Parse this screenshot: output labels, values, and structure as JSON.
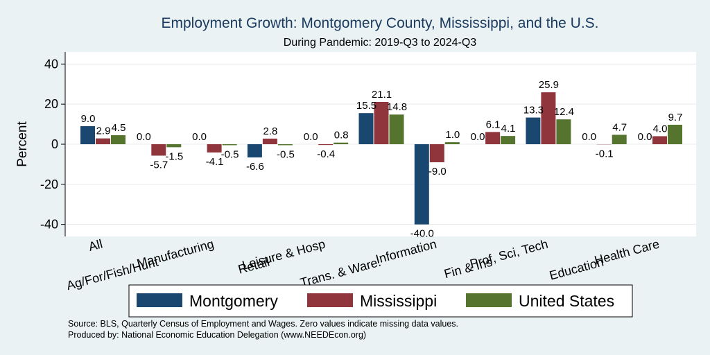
{
  "chart_data": {
    "type": "bar",
    "title": "Employment Growth: Montgomery County, Mississippi, and the U.S.",
    "subtitle": "During Pandemic: 2019-Q3 to 2024-Q3",
    "ylabel": "Percent",
    "xlabel": "",
    "ylim": [
      -46,
      46
    ],
    "yticks": [
      -40,
      -20,
      0,
      20,
      40
    ],
    "grid": true,
    "legend_position": "bottom",
    "categories": [
      "All",
      "Ag/For/Fish/Hunt",
      "Manufacturing",
      "Retail",
      "Leisure & Hosp",
      "Trans. & Ware.",
      "Information",
      "Fin & Ins",
      "Prof, Sci, Tech",
      "Education",
      "Health Care"
    ],
    "series": [
      {
        "name": "Montgomery",
        "color": "#1a476f",
        "values": [
          9.0,
          0.0,
          0.0,
          -6.6,
          0.0,
          15.5,
          -40.0,
          0.0,
          13.3,
          0.0,
          0.0
        ]
      },
      {
        "name": "Mississippi",
        "color": "#90353b",
        "values": [
          2.9,
          -5.7,
          -4.1,
          2.8,
          -0.4,
          21.1,
          -9.0,
          6.1,
          25.9,
          -0.1,
          4.0
        ]
      },
      {
        "name": "United States",
        "color": "#55752f",
        "values": [
          4.5,
          -1.5,
          -0.5,
          -0.5,
          0.8,
          14.8,
          1.0,
          4.1,
          12.4,
          4.7,
          9.7
        ]
      }
    ],
    "notes": [
      "Source: BLS, Quarterly Census of Employment and Wages. Zero values indicate missing data values.",
      "Produced by: National Economic Education Delegation (www.NEEDEcon.org)"
    ]
  }
}
